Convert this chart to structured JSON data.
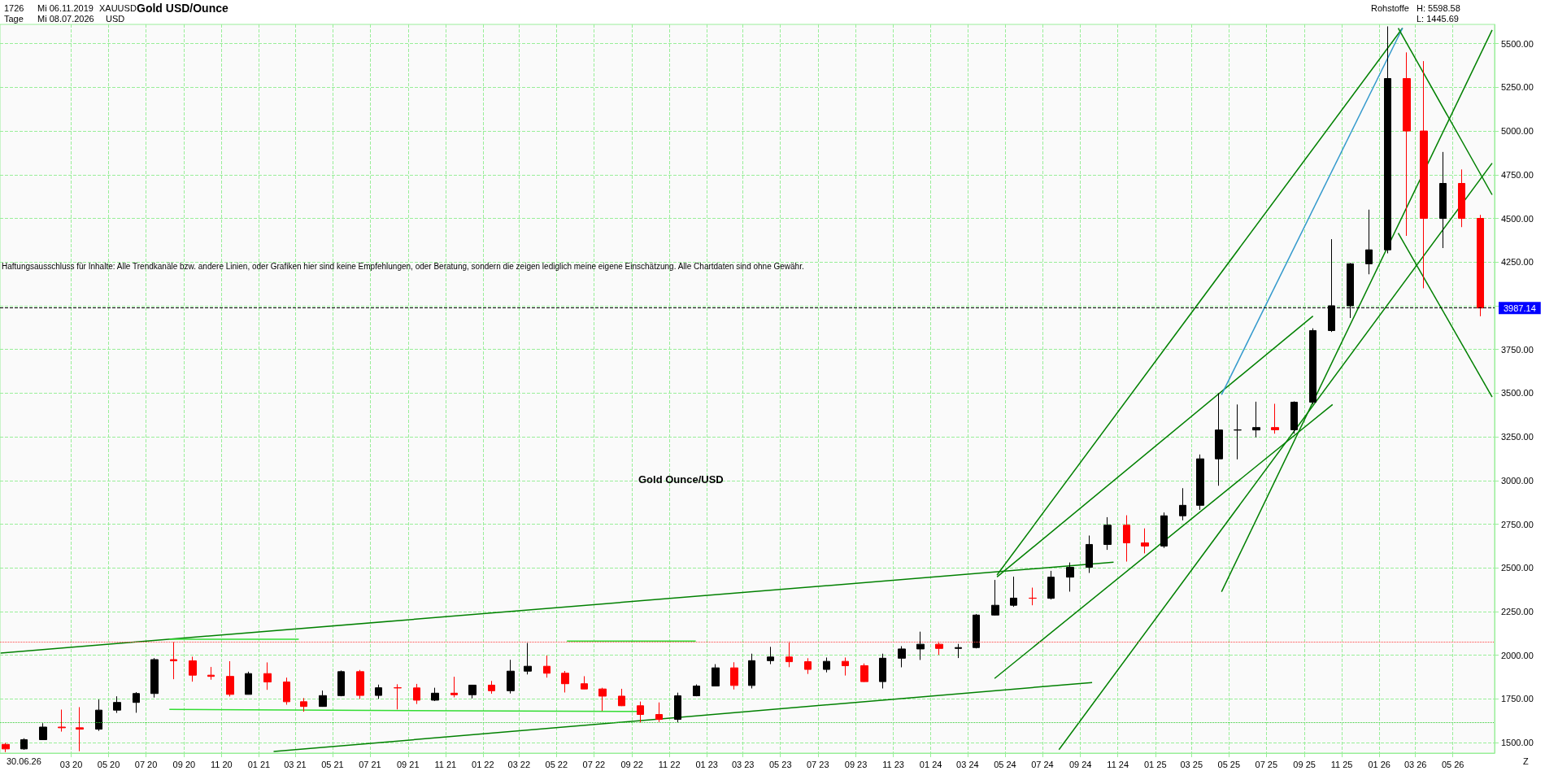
{
  "chart_data": {
    "type": "candlestick",
    "title": "Gold USD/Ounce",
    "annotations": [
      "1726",
      "Mi 06.11.2019",
      "Tage",
      "Mi 08.07.2026",
      "XAUUSD",
      "USD",
      "Rohstoffe",
      "H: 5598.58",
      "L: 1445.69",
      "Haftungsausschluss für Inhalte: Alle Trendkanäle bzw. andere Linien, oder Grafiken hier sind keine Empfehlungen, oder Beratung, sondern die zeigen lediglich meine eigene Einschätzung. Alle Chartdaten sind ohne Gewähr.",
      "Gold Ounce/USD",
      "30.06.26",
      "Z"
    ],
    "xlim": [
      "2019-11-06",
      "2026-07-08"
    ],
    "xticks": [
      {
        "value": "2020-03-01",
        "label": "03 20"
      },
      {
        "value": "2020-05-01",
        "label": "05 20"
      },
      {
        "value": "2020-07-01",
        "label": "07 20"
      },
      {
        "value": "2020-09-01",
        "label": "09 20"
      },
      {
        "value": "2020-11-01",
        "label": "11 20"
      },
      {
        "value": "2021-01-01",
        "label": "01 21"
      },
      {
        "value": "2021-03-01",
        "label": "03 21"
      },
      {
        "value": "2021-05-01",
        "label": "05 21"
      },
      {
        "value": "2021-07-01",
        "label": "07 21"
      },
      {
        "value": "2021-09-01",
        "label": "09 21"
      },
      {
        "value": "2021-11-01",
        "label": "11 21"
      },
      {
        "value": "2022-01-01",
        "label": "01 22"
      },
      {
        "value": "2022-03-01",
        "label": "03 22"
      },
      {
        "value": "2022-05-01",
        "label": "05 22"
      },
      {
        "value": "2022-07-01",
        "label": "07 22"
      },
      {
        "value": "2022-09-01",
        "label": "09 22"
      },
      {
        "value": "2022-11-01",
        "label": "11 22"
      },
      {
        "value": "2023-01-01",
        "label": "01 23"
      },
      {
        "value": "2023-03-01",
        "label": "03 23"
      },
      {
        "value": "2023-05-01",
        "label": "05 23"
      },
      {
        "value": "2023-07-01",
        "label": "07 23"
      },
      {
        "value": "2023-09-01",
        "label": "09 23"
      },
      {
        "value": "2023-11-01",
        "label": "11 23"
      },
      {
        "value": "2024-01-01",
        "label": "01 24"
      },
      {
        "value": "2024-03-01",
        "label": "03 24"
      },
      {
        "value": "2024-05-01",
        "label": "05 24"
      },
      {
        "value": "2024-07-01",
        "label": "07 24"
      },
      {
        "value": "2024-09-01",
        "label": "09 24"
      },
      {
        "value": "2024-11-01",
        "label": "11 24"
      },
      {
        "value": "2025-01-01",
        "label": "01 25"
      },
      {
        "value": "2025-03-01",
        "label": "03 25"
      },
      {
        "value": "2025-05-01",
        "label": "05 25"
      },
      {
        "value": "2025-07-01",
        "label": "07 25"
      },
      {
        "value": "2025-09-01",
        "label": "09 25"
      },
      {
        "value": "2025-11-01",
        "label": "11 25"
      },
      {
        "value": "2026-01-01",
        "label": "01 26"
      },
      {
        "value": "2026-03-01",
        "label": "03 26"
      },
      {
        "value": "2026-05-01",
        "label": "05 26"
      }
    ],
    "ylim": [
      1440,
      5610
    ],
    "yticks": [
      {
        "value": 1500,
        "label": "1500.00"
      },
      {
        "value": 1750,
        "label": "1750.00"
      },
      {
        "value": 2000,
        "label": "2000.00"
      },
      {
        "value": 2250,
        "label": "2250.00"
      },
      {
        "value": 2500,
        "label": "2500.00"
      },
      {
        "value": 2750,
        "label": "2750.00"
      },
      {
        "value": 3000,
        "label": "3000.00"
      },
      {
        "value": 3250,
        "label": "3250.00"
      },
      {
        "value": 3500,
        "label": "3500.00"
      },
      {
        "value": 3750,
        "label": "3750.00"
      },
      {
        "value": 4000,
        "label": null
      },
      {
        "value": 4250,
        "label": "4250.00"
      },
      {
        "value": 4500,
        "label": "4500.00"
      },
      {
        "value": 4750,
        "label": "4750.00"
      },
      {
        "value": 5000,
        "label": "5000.00"
      },
      {
        "value": 5250,
        "label": "5250.00"
      },
      {
        "value": 5500,
        "label": "5500.00"
      }
    ],
    "grid": true,
    "marker": "none",
    "line_style": "solid",
    "ref_lines": [
      {
        "axis": "y",
        "value": 2075,
        "color": "#ff4040",
        "line_style": "dotted"
      },
      {
        "axis": "y",
        "value": 1615,
        "color": "#33cc33",
        "line_style": "dotted"
      },
      {
        "axis": "y",
        "value": 3987.14,
        "label": "3987.14",
        "color": "#000000",
        "line_style": "dashed"
      }
    ],
    "series": [
      {
        "colors": [
          "#ff0000",
          "#000000",
          "#000000",
          "#ff0000",
          "#ff0000",
          "#000000",
          "#000000",
          "#000000",
          "#000000",
          "#ff0000",
          "#ff0000",
          "#ff0000",
          "#ff0000",
          "#000000",
          "#ff0000",
          "#ff0000",
          "#ff0000",
          "#000000",
          "#000000",
          "#ff0000",
          "#000000",
          "#ff0000",
          "#ff0000",
          "#000000",
          "#ff0000",
          "#000000",
          "#ff0000",
          "#000000",
          "#000000",
          "#ff0000",
          "#ff0000",
          "#ff0000",
          "#ff0000",
          "#ff0000",
          "#ff0000",
          "#ff0000",
          "#000000",
          "#000000",
          "#000000",
          "#ff0000",
          "#000000",
          "#000000",
          "#ff0000",
          "#ff0000",
          "#000000",
          "#ff0000",
          "#ff0000",
          "#000000",
          "#000000",
          "#000000",
          "#ff0000",
          "#000000",
          "#000000",
          "#000000",
          "#000000",
          "#ff0000",
          "#000000",
          "#000000",
          "#000000",
          "#000000",
          "#ff0000",
          "#ff0000",
          "#000000",
          "#000000",
          "#000000",
          "#000000",
          "#000000",
          "#000000",
          "#ff0000",
          "#000000",
          "#000000",
          "#000000",
          "#000000",
          "#000000",
          "#000000",
          "#ff0000",
          "#ff0000",
          "#000000",
          "#ff0000",
          "#ff0000"
        ],
        "x": [
          "2019-11-15",
          "2019-12-15",
          "2020-01-15",
          "2020-02-15",
          "2020-03-15",
          "2020-04-15",
          "2020-05-15",
          "2020-06-15",
          "2020-07-15",
          "2020-08-15",
          "2020-09-15",
          "2020-10-15",
          "2020-11-15",
          "2020-12-15",
          "2021-01-15",
          "2021-02-15",
          "2021-03-15",
          "2021-04-15",
          "2021-05-15",
          "2021-06-15",
          "2021-07-15",
          "2021-08-15",
          "2021-09-15",
          "2021-10-15",
          "2021-11-15",
          "2021-12-15",
          "2022-01-15",
          "2022-02-15",
          "2022-03-15",
          "2022-04-15",
          "2022-05-15",
          "2022-06-15",
          "2022-07-15",
          "2022-08-15",
          "2022-09-15",
          "2022-10-15",
          "2022-11-15",
          "2022-12-15",
          "2023-01-15",
          "2023-02-15",
          "2023-03-15",
          "2023-04-15",
          "2023-05-15",
          "2023-06-15",
          "2023-07-15",
          "2023-08-15",
          "2023-09-15",
          "2023-10-15",
          "2023-11-15",
          "2023-12-15",
          "2024-01-15",
          "2024-02-15",
          "2024-03-15",
          "2024-04-15",
          "2024-05-15",
          "2024-06-15",
          "2024-07-15",
          "2024-08-15",
          "2024-09-15",
          "2024-10-15",
          "2024-11-15",
          "2024-12-15",
          "2025-01-15",
          "2025-02-15",
          "2025-03-15",
          "2025-04-15",
          "2025-05-15",
          "2025-06-15",
          "2025-07-15",
          "2025-08-15",
          "2025-09-15",
          "2025-10-15",
          "2025-11-15",
          "2025-12-15",
          "2026-01-15",
          "2026-02-15",
          "2026-03-15",
          "2026-04-15",
          "2026-05-15",
          "2026-06-15"
        ],
        "ohlc": [
          [
            1490,
            1498,
            1445.69,
            1464
          ],
          [
            1464,
            1525,
            1459,
            1517
          ],
          [
            1517,
            1611,
            1517,
            1589
          ],
          [
            1589,
            1689,
            1563,
            1585
          ],
          [
            1585,
            1703,
            1451,
            1577
          ],
          [
            1577,
            1747,
            1567,
            1686
          ],
          [
            1686,
            1765,
            1670,
            1730
          ],
          [
            1730,
            1789,
            1671,
            1781
          ],
          [
            1781,
            1984,
            1758,
            1975
          ],
          [
            1975,
            2075,
            1863,
            1968
          ],
          [
            1968,
            1992,
            1849,
            1886
          ],
          [
            1886,
            1933,
            1860,
            1879
          ],
          [
            1879,
            1966,
            1764,
            1776
          ],
          [
            1776,
            1906,
            1775,
            1895
          ],
          [
            1895,
            1959,
            1802,
            1847
          ],
          [
            1847,
            1872,
            1717,
            1734
          ],
          [
            1734,
            1755,
            1677,
            1707
          ],
          [
            1707,
            1798,
            1705,
            1769
          ],
          [
            1769,
            1913,
            1765,
            1906
          ],
          [
            1906,
            1916,
            1750,
            1770
          ],
          [
            1770,
            1832,
            1751,
            1814
          ],
          [
            1814,
            1834,
            1690,
            1813
          ],
          [
            1813,
            1836,
            1721,
            1743
          ],
          [
            1743,
            1814,
            1738,
            1783
          ],
          [
            1783,
            1877,
            1759,
            1774
          ],
          [
            1774,
            1831,
            1753,
            1829
          ],
          [
            1829,
            1853,
            1780,
            1797
          ],
          [
            1797,
            1974,
            1781,
            1909
          ],
          [
            1909,
            2070,
            1890,
            1937
          ],
          [
            1937,
            1998,
            1872,
            1897
          ],
          [
            1897,
            1910,
            1787,
            1837
          ],
          [
            1837,
            1880,
            1806,
            1807
          ],
          [
            1807,
            1814,
            1681,
            1766
          ],
          [
            1766,
            1808,
            1709,
            1711
          ],
          [
            1711,
            1735,
            1615,
            1661
          ],
          [
            1661,
            1730,
            1618,
            1633
          ],
          [
            1633,
            1786,
            1616,
            1768
          ],
          [
            1768,
            1833,
            1765,
            1824
          ],
          [
            1824,
            1949,
            1823,
            1928
          ],
          [
            1928,
            1960,
            1804,
            1827
          ],
          [
            1827,
            2009,
            1810,
            1969
          ],
          [
            1969,
            2048,
            1949,
            1990
          ],
          [
            1990,
            2079,
            1932,
            1963
          ],
          [
            1963,
            1983,
            1893,
            1919
          ],
          [
            1919,
            1987,
            1902,
            1965
          ],
          [
            1965,
            1987,
            1884,
            1940
          ],
          [
            1940,
            1953,
            1847,
            1849
          ],
          [
            1849,
            2009,
            1810,
            1983
          ],
          [
            1983,
            2052,
            1931,
            2036
          ],
          [
            2036,
            2135,
            1973,
            2063
          ],
          [
            2063,
            2079,
            2002,
            2039
          ],
          [
            2039,
            2065,
            1984,
            2044
          ],
          [
            2044,
            2236,
            2039,
            2230
          ],
          [
            2230,
            2431,
            2228,
            2286
          ],
          [
            2286,
            2450,
            2277,
            2327
          ],
          [
            2327,
            2387,
            2286,
            2326
          ],
          [
            2326,
            2483,
            2319,
            2447
          ],
          [
            2447,
            2531,
            2364,
            2503
          ],
          [
            2503,
            2685,
            2471,
            2634
          ],
          [
            2634,
            2790,
            2603,
            2744
          ],
          [
            2744,
            2801,
            2536,
            2643
          ],
          [
            2643,
            2726,
            2583,
            2625
          ],
          [
            2625,
            2817,
            2614,
            2798
          ],
          [
            2798,
            2956,
            2772,
            2858
          ],
          [
            2858,
            3149,
            2832,
            3124
          ],
          [
            3124,
            3500,
            2970,
            3289
          ],
          [
            3289,
            3435,
            3121,
            3289
          ],
          [
            3289,
            3451,
            3247,
            3303
          ],
          [
            3303,
            3439,
            3268,
            3290
          ],
          [
            3290,
            3453,
            3268,
            3448
          ],
          [
            3448,
            3871,
            3436,
            3858
          ],
          [
            3858,
            4381,
            3850,
            4000
          ],
          [
            4000,
            4245,
            3930,
            4240
          ],
          [
            4240,
            4550,
            4180,
            4320
          ],
          [
            4320,
            5598.58,
            4300,
            5300
          ],
          [
            5300,
            5450,
            4400,
            5000
          ],
          [
            5000,
            5400,
            4100,
            4500
          ],
          [
            4500,
            4880,
            4330,
            4700
          ],
          [
            4700,
            4780,
            4450,
            4500
          ],
          [
            4500,
            4520,
            3940,
            3987.14
          ]
        ]
      },
      {
        "type": "line",
        "color": "#008000",
        "x": [
          "2019-11-07",
          "2024-10-25"
        ],
        "values": [
          2013,
          2532
        ]
      },
      {
        "type": "line",
        "color": "#008000",
        "x": [
          "2021-01-25",
          "2024-09-20"
        ],
        "values": [
          1449,
          1844
        ]
      },
      {
        "type": "line",
        "color": "#008000",
        "x": [
          "2024-04-18",
          "2026-02-08"
        ],
        "values": [
          2459,
          5589
        ]
      },
      {
        "type": "line",
        "color": "#008000",
        "x": [
          "2024-07-28",
          "2026-07-04"
        ],
        "values": [
          1460,
          4816
        ]
      },
      {
        "type": "line",
        "color": "#008000",
        "x": [
          "2024-04-14",
          "2025-10-17"
        ],
        "values": [
          1867,
          3435
        ]
      },
      {
        "type": "line",
        "color": "#008000",
        "x": [
          "2024-04-18",
          "2025-09-15"
        ],
        "values": [
          2448,
          3941
        ]
      },
      {
        "type": "line",
        "color": "#008000",
        "x": [
          "2025-04-19",
          "2026-07-04"
        ],
        "values": [
          2363,
          5578
        ]
      },
      {
        "type": "line",
        "color": "#3399cc",
        "x": [
          "2025-04-19",
          "2026-02-08"
        ],
        "values": [
          3491,
          5589
        ]
      },
      {
        "type": "line",
        "color": "#008000",
        "x": [
          "2026-02-01",
          "2026-07-04"
        ],
        "values": [
          5589,
          4635
        ]
      },
      {
        "type": "line",
        "color": "#008000",
        "x": [
          "2026-02-01",
          "2026-07-04"
        ],
        "values": [
          4416,
          3478
        ]
      },
      {
        "type": "line",
        "color": "#33dd33",
        "x": [
          "2020-08-08",
          "2021-03-07"
        ],
        "values": [
          2092,
          2092
        ]
      },
      {
        "type": "line",
        "color": "#33dd33",
        "x": [
          "2022-05-18",
          "2022-12-14"
        ],
        "values": [
          2081,
          2081
        ]
      },
      {
        "type": "line",
        "color": "#33dd33",
        "x": [
          "2020-08-08",
          "2022-09-09"
        ],
        "values": [
          1690,
          1678
        ]
      }
    ]
  }
}
